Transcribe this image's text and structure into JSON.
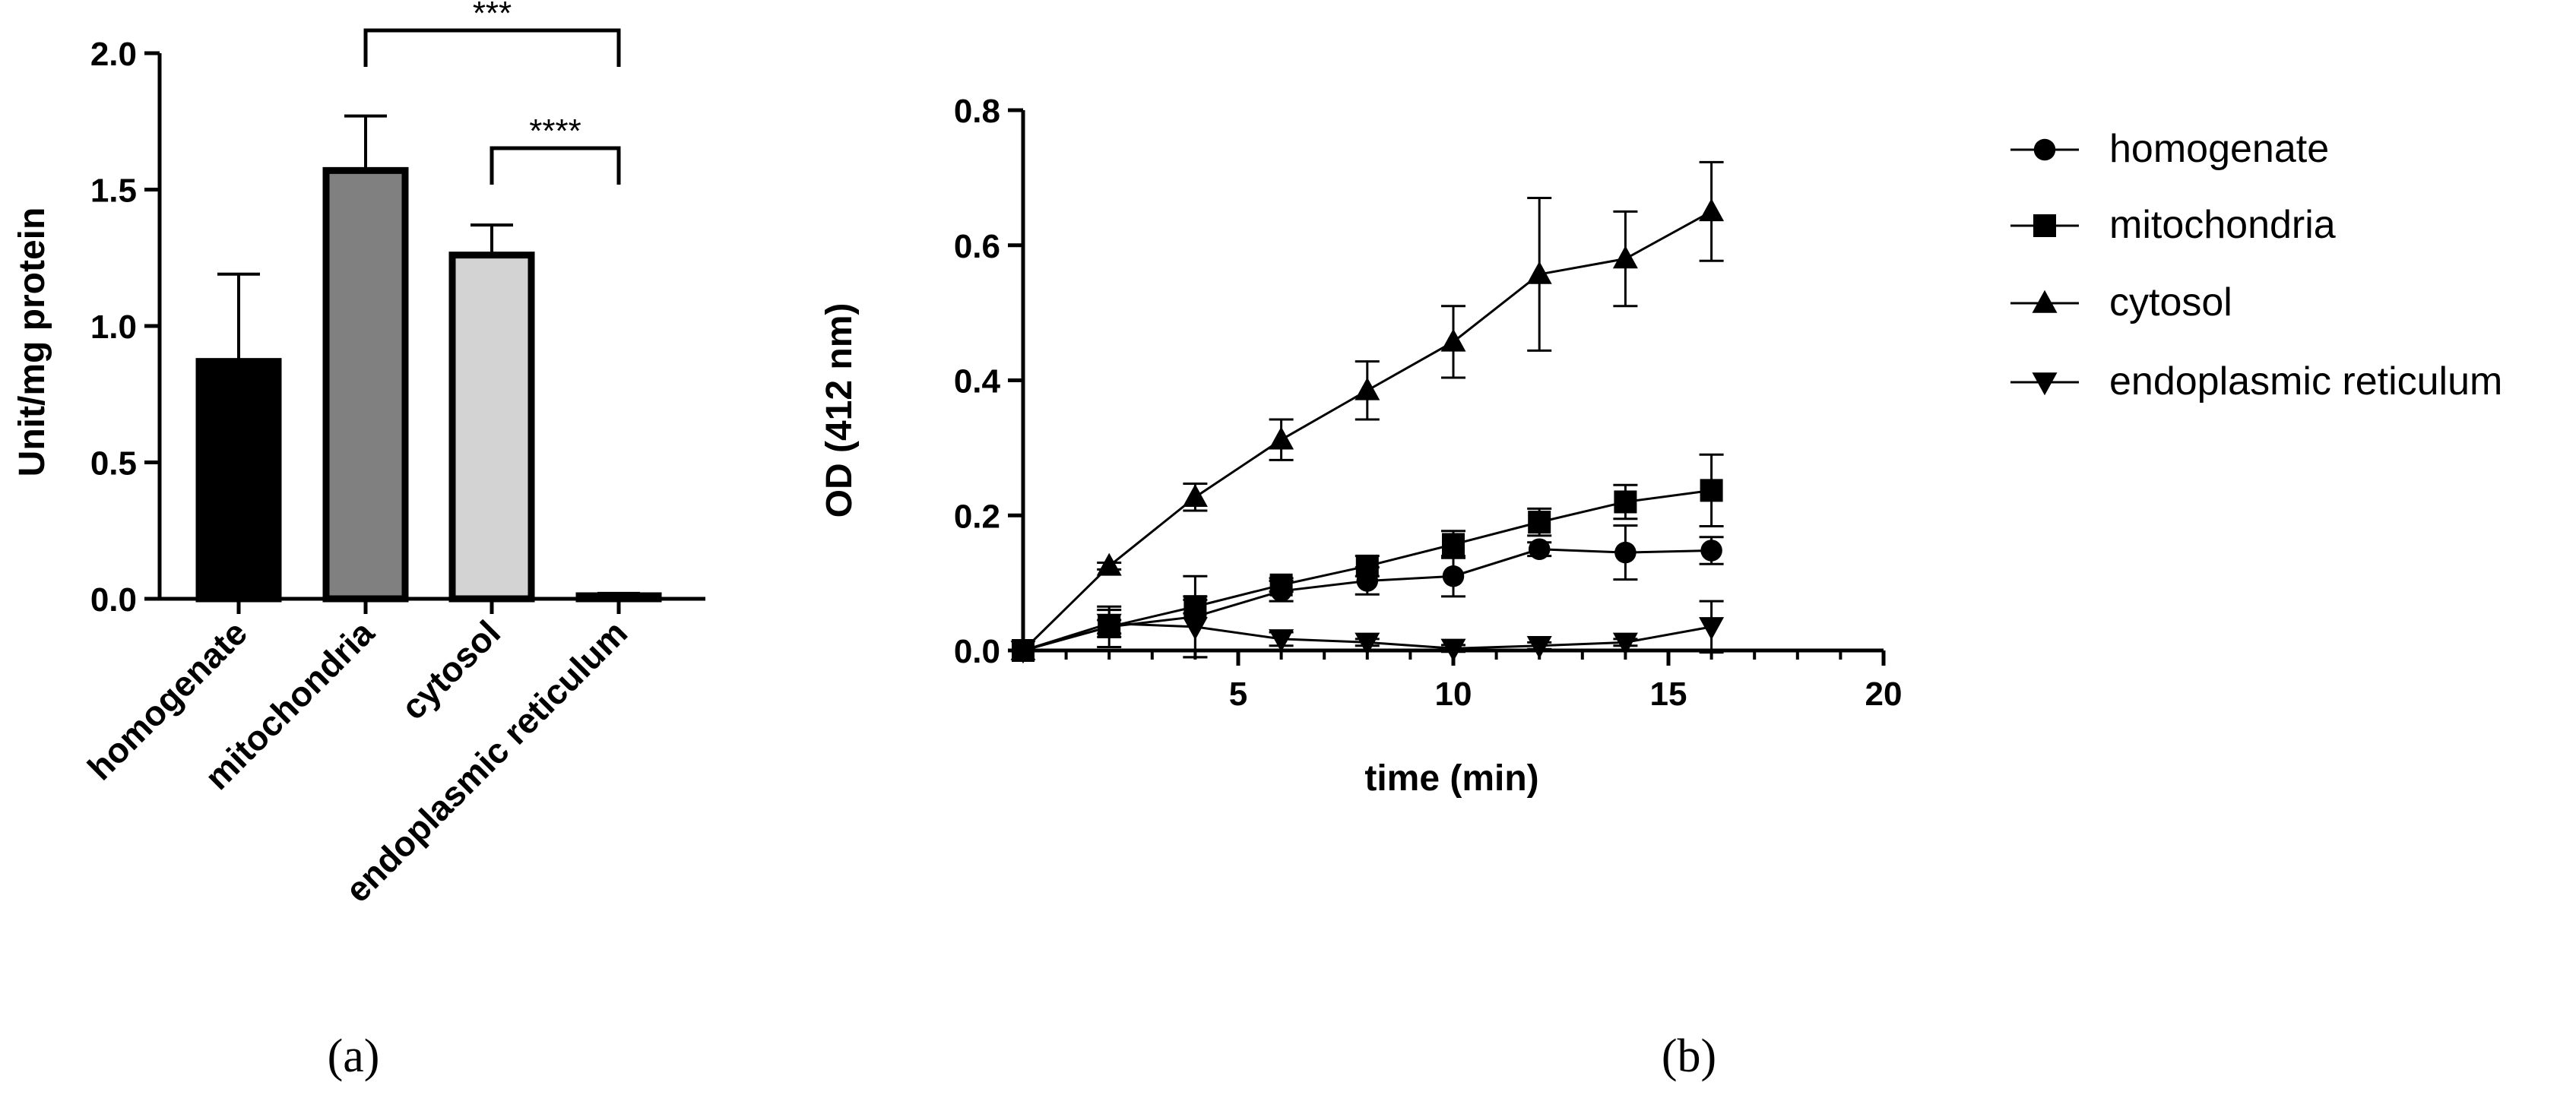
{
  "chart_data": [
    {
      "panel": "a",
      "type": "bar",
      "caption": "(a)",
      "ylabel": "Unit/mg protein",
      "xlabel": "",
      "ylim": [
        0,
        2.0
      ],
      "yticks": [
        "0.0",
        "0.5",
        "1.0",
        "1.5",
        "2.0"
      ],
      "categories": [
        "homogenate",
        "mitochondria",
        "cytosol",
        "endoplasmic reticulum"
      ],
      "values": [
        0.87,
        1.57,
        1.26,
        0.01
      ],
      "errors": [
        0.32,
        0.2,
        0.11,
        0.01
      ],
      "bar_colors": [
        "#000000",
        "#808080",
        "#d3d3d3",
        "#ffffff"
      ],
      "significance": [
        {
          "from": 1,
          "to": 3,
          "label": "***"
        },
        {
          "from": 2,
          "to": 3,
          "label": "****"
        }
      ]
    },
    {
      "panel": "b",
      "type": "line",
      "caption": "(b)",
      "xlabel": "time (min)",
      "ylabel": "OD (412 nm)",
      "xlim": [
        0,
        20
      ],
      "ylim": [
        0,
        0.8
      ],
      "xticks": [
        "5",
        "10",
        "15",
        "20"
      ],
      "yticks": [
        "0.0",
        "0.2",
        "0.4",
        "0.6",
        "0.8"
      ],
      "series": [
        {
          "name": "homogenate",
          "marker": "circle",
          "x": [
            0,
            2,
            4,
            6,
            8,
            10,
            12,
            14,
            16
          ],
          "y": [
            0,
            0.035,
            0.05,
            0.088,
            0.103,
            0.11,
            0.15,
            0.145,
            0.148
          ],
          "err": [
            0,
            0.03,
            0.06,
            0.015,
            0.02,
            0.03,
            0.01,
            0.04,
            0.02
          ]
        },
        {
          "name": "mitochondria",
          "marker": "square",
          "x": [
            0,
            2,
            4,
            6,
            8,
            10,
            12,
            14,
            16
          ],
          "y": [
            0,
            0.035,
            0.065,
            0.097,
            0.125,
            0.157,
            0.19,
            0.22,
            0.237
          ],
          "err": [
            0,
            0.01,
            0.01,
            0.01,
            0.015,
            0.02,
            0.02,
            0.025,
            0.053
          ]
        },
        {
          "name": "cytosol",
          "marker": "triangle-up",
          "x": [
            0,
            2,
            4,
            6,
            8,
            10,
            12,
            14,
            16
          ],
          "y": [
            0,
            0.125,
            0.227,
            0.312,
            0.385,
            0.457,
            0.557,
            0.58,
            0.65
          ],
          "err": [
            0,
            0.005,
            0.02,
            0.03,
            0.043,
            0.053,
            0.113,
            0.07,
            0.073
          ]
        },
        {
          "name": "endoplasmic reticulum",
          "marker": "triangle-down",
          "x": [
            0,
            2,
            4,
            6,
            8,
            10,
            12,
            14,
            16
          ],
          "y": [
            0,
            0.04,
            0.035,
            0.017,
            0.012,
            0.003,
            0.007,
            0.012,
            0.035
          ],
          "err": [
            0,
            0.02,
            0.045,
            0.01,
            0.005,
            0.005,
            0.005,
            0.005,
            0.038
          ]
        }
      ]
    }
  ]
}
